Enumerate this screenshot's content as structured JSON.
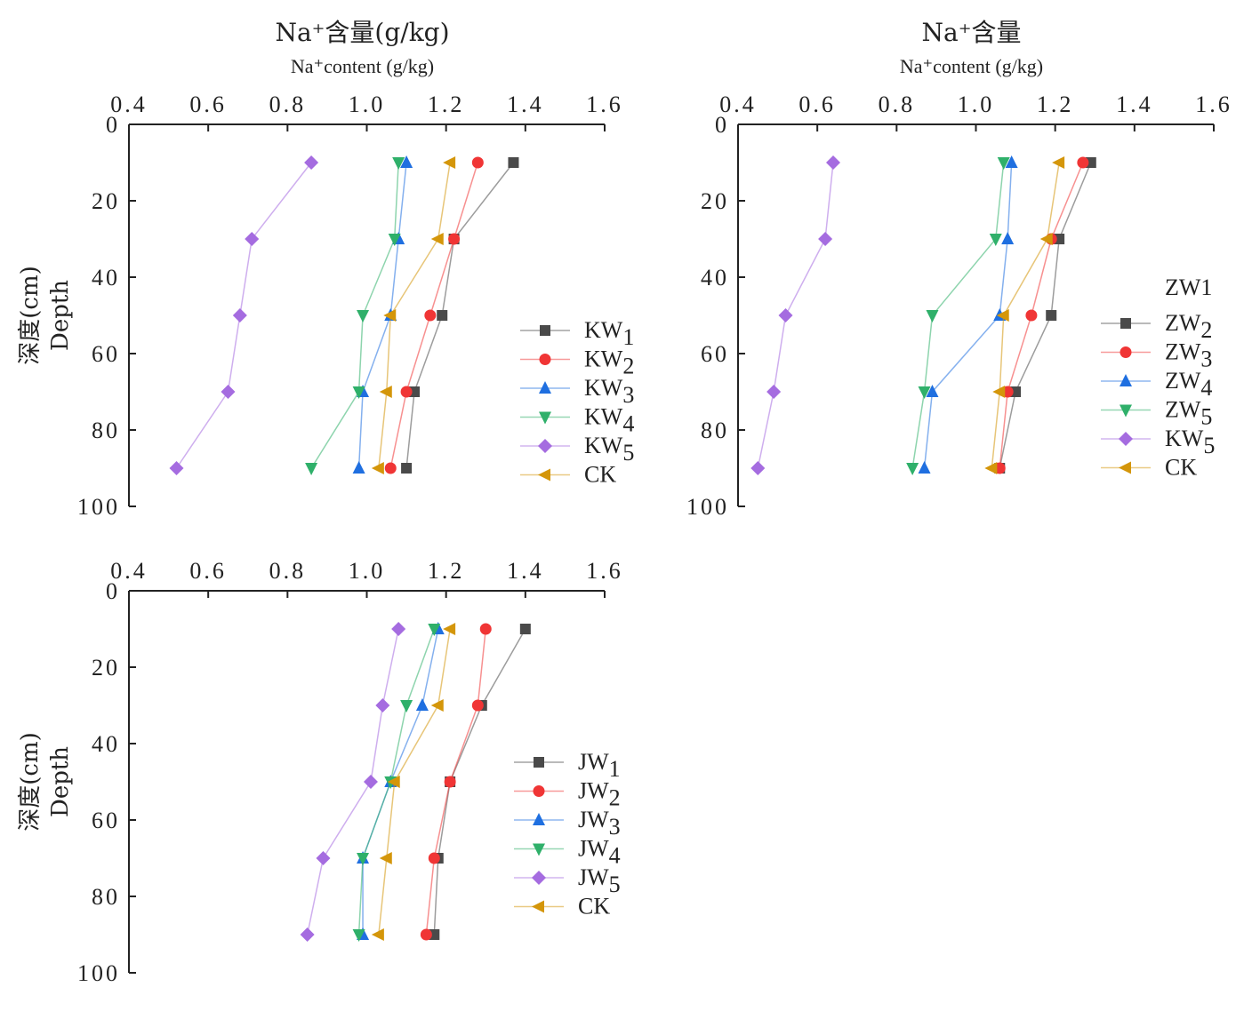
{
  "colors": {
    "s1": "#4a4a4a",
    "s2": "#f03535",
    "s3": "#1f6fe0",
    "s4": "#2fb06a",
    "s5": "#a56ce0",
    "ck": "#d4960a"
  },
  "chart_data": [
    {
      "type": "line",
      "title": "Na⁺含量(g/kg)",
      "subtitle": "Na⁺content (g/kg)",
      "ylabel": "深度(cm)",
      "ylabel2": "Depth",
      "xlim": [
        0.4,
        1.6
      ],
      "ylim": [
        0,
        100
      ],
      "xticks": [
        "0.4",
        "0.6",
        "0.8",
        "1.0",
        "1.2",
        "1.4",
        "1.6"
      ],
      "yticks": [
        "0",
        "20",
        "40",
        "60",
        "80",
        "100"
      ],
      "y": [
        10,
        30,
        50,
        70,
        90
      ],
      "legend_extra": "",
      "series": [
        {
          "name": "KW1",
          "marker": "square",
          "color": "#4a4a4a",
          "values": [
            1.37,
            1.22,
            1.19,
            1.12,
            1.1
          ]
        },
        {
          "name": "KW2",
          "marker": "circle",
          "color": "#f03535",
          "values": [
            1.28,
            1.22,
            1.16,
            1.1,
            1.06
          ]
        },
        {
          "name": "KW3",
          "marker": "triangle-up",
          "color": "#1f6fe0",
          "values": [
            1.1,
            1.08,
            1.06,
            0.99,
            0.98
          ]
        },
        {
          "name": "KW4",
          "marker": "triangle-down",
          "color": "#2fb06a",
          "values": [
            1.08,
            1.07,
            0.99,
            0.98,
            0.86
          ]
        },
        {
          "name": "KW5",
          "marker": "diamond",
          "color": "#a56ce0",
          "values": [
            0.86,
            0.71,
            0.68,
            0.65,
            0.52
          ]
        },
        {
          "name": "CK",
          "marker": "triangle-left",
          "color": "#d4960a",
          "values": [
            1.21,
            1.18,
            1.06,
            1.05,
            1.03
          ]
        }
      ]
    },
    {
      "type": "line",
      "title": "Na⁺含量",
      "subtitle": "Na⁺content (g/kg)",
      "ylabel": "",
      "ylabel2": "",
      "xlim": [
        0.4,
        1.6
      ],
      "ylim": [
        0,
        100
      ],
      "xticks": [
        "0.4",
        "0.6",
        "0.8",
        "1.0",
        "1.2",
        "1.4",
        "1.6"
      ],
      "yticks": [
        "0",
        "20",
        "40",
        "60",
        "80",
        "100"
      ],
      "y": [
        10,
        30,
        50,
        70,
        90
      ],
      "legend_extra": "ZW1",
      "series": [
        {
          "name": "ZW2",
          "marker": "square",
          "color": "#4a4a4a",
          "values": [
            1.29,
            1.21,
            1.19,
            1.1,
            1.06
          ]
        },
        {
          "name": "ZW3",
          "marker": "circle",
          "color": "#f03535",
          "values": [
            1.27,
            1.19,
            1.14,
            1.08,
            1.06
          ]
        },
        {
          "name": "ZW4",
          "marker": "triangle-up",
          "color": "#1f6fe0",
          "values": [
            1.09,
            1.08,
            1.06,
            0.89,
            0.87
          ]
        },
        {
          "name": "ZW5",
          "marker": "triangle-down",
          "color": "#2fb06a",
          "values": [
            1.07,
            1.05,
            0.89,
            0.87,
            0.84
          ]
        },
        {
          "name": "KW5",
          "marker": "diamond",
          "color": "#a56ce0",
          "values": [
            0.64,
            0.62,
            0.52,
            0.49,
            0.45
          ]
        },
        {
          "name": "CK",
          "marker": "triangle-left",
          "color": "#d4960a",
          "values": [
            1.21,
            1.18,
            1.07,
            1.06,
            1.04
          ]
        }
      ]
    },
    {
      "type": "line",
      "title": "",
      "subtitle": "",
      "ylabel": "深度(cm)",
      "ylabel2": "Depth",
      "xlim": [
        0.4,
        1.6
      ],
      "ylim": [
        0,
        100
      ],
      "xticks": [
        "0.4",
        "0.6",
        "0.8",
        "1.0",
        "1.2",
        "1.4",
        "1.6"
      ],
      "yticks": [
        "0",
        "20",
        "40",
        "60",
        "80",
        "100"
      ],
      "y": [
        10,
        30,
        50,
        70,
        90
      ],
      "legend_extra": "",
      "series": [
        {
          "name": "JW1",
          "marker": "square",
          "color": "#4a4a4a",
          "values": [
            1.4,
            1.29,
            1.21,
            1.18,
            1.17
          ]
        },
        {
          "name": "JW2",
          "marker": "circle",
          "color": "#f03535",
          "values": [
            1.3,
            1.28,
            1.21,
            1.17,
            1.15
          ]
        },
        {
          "name": "JW3",
          "marker": "triangle-up",
          "color": "#1f6fe0",
          "values": [
            1.18,
            1.14,
            1.06,
            0.99,
            0.99
          ]
        },
        {
          "name": "JW4",
          "marker": "triangle-down",
          "color": "#2fb06a",
          "values": [
            1.17,
            1.1,
            1.06,
            0.99,
            0.98
          ]
        },
        {
          "name": "JW5",
          "marker": "diamond",
          "color": "#a56ce0",
          "values": [
            1.08,
            1.04,
            1.01,
            0.89,
            0.85
          ]
        },
        {
          "name": "CK",
          "marker": "triangle-left",
          "color": "#d4960a",
          "values": [
            1.21,
            1.18,
            1.07,
            1.05,
            1.03
          ]
        }
      ]
    }
  ]
}
